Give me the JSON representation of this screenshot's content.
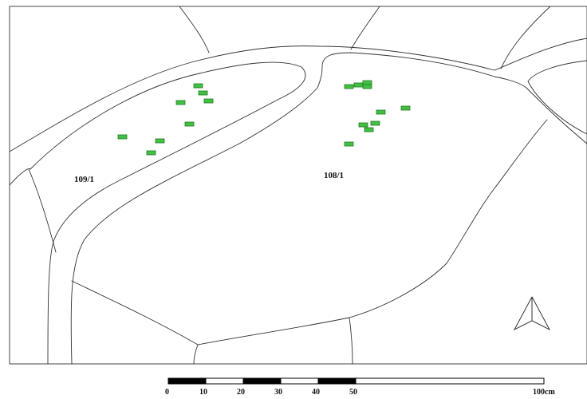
{
  "map": {
    "parcels": [
      {
        "id": "parcel-109-1",
        "label": "109/1"
      },
      {
        "id": "parcel-108-1",
        "label": "108/1"
      }
    ],
    "north_arrow": {
      "icon": "north-arrow-icon"
    },
    "scale_bar": {
      "labels": [
        "0",
        "10",
        "20",
        "30",
        "40",
        "50",
        "100cm"
      ],
      "fill_color": "#000000"
    },
    "colors": {
      "plot_fill": "#43c043",
      "plot_stroke": "#1f7a1f",
      "lines": "#333333",
      "background": "#ffffff"
    }
  }
}
